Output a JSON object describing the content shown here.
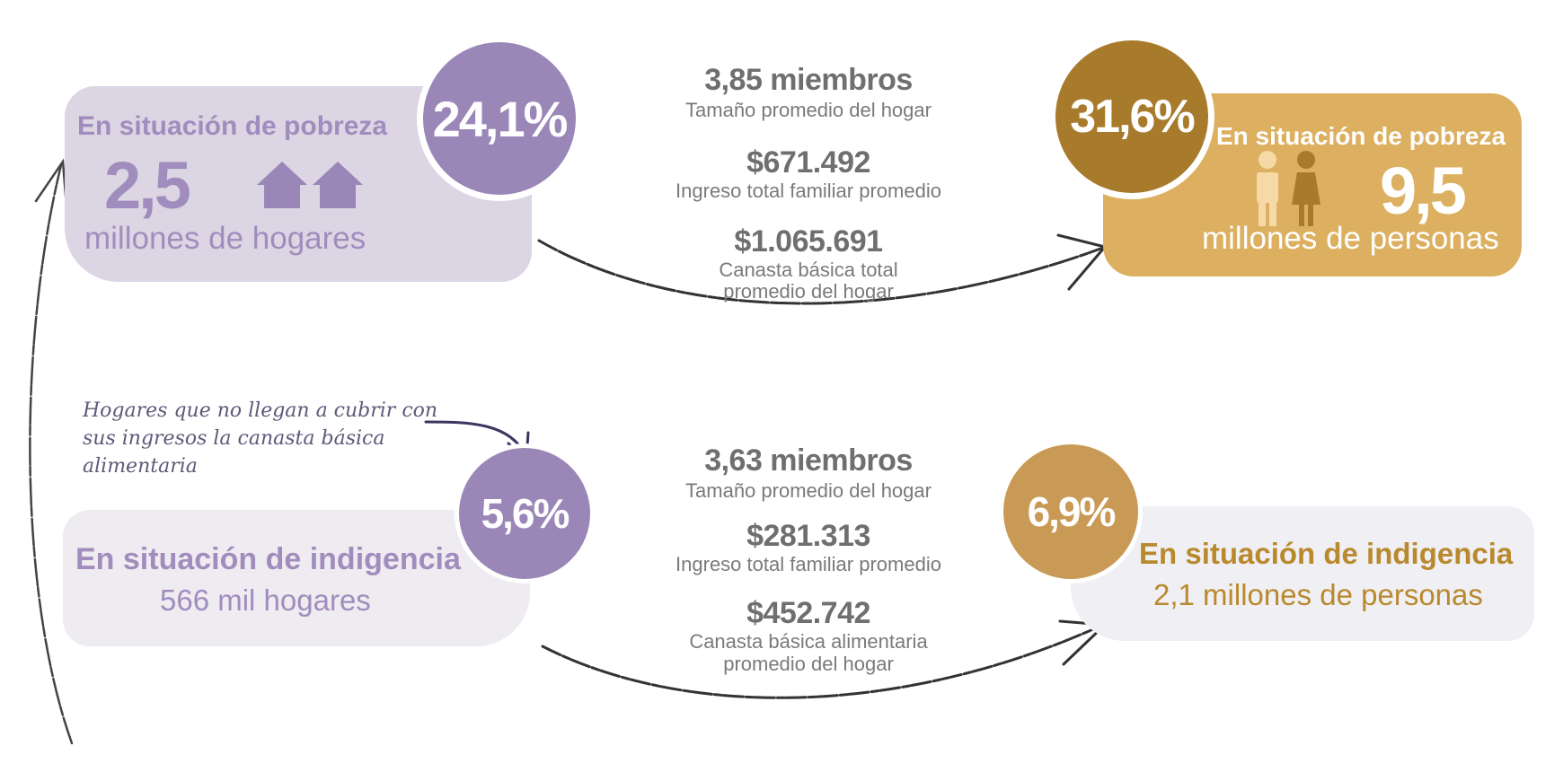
{
  "colors": {
    "purple": "#9a87b8",
    "purple_text": "#a08dbd",
    "lavender_card": "#dcd5e3",
    "light_card": "#eeebf1",
    "gold_dark": "#a87a2c",
    "gold_card": "#dcb060",
    "gold_circle": "#c99a55",
    "gold_text": "#b9892e",
    "light_gold_card": "#f0eff3",
    "gray_text": "#707070"
  },
  "icons": {
    "houses": "house-icon",
    "people": "person-icon"
  },
  "pobreza_hogares": {
    "percent": "24,1%",
    "heading": "En situación de pobreza",
    "value": "2,5",
    "unit": "millones de hogares"
  },
  "pobreza_personas": {
    "percent": "31,6%",
    "heading": "En situación de pobreza",
    "value": "9,5",
    "unit": "millones de personas"
  },
  "pobreza_stats": [
    {
      "value": "3,85 miembros",
      "label": "Tamaño promedio del hogar"
    },
    {
      "value": "$671.492",
      "label": "Ingreso total familiar promedio"
    },
    {
      "value": "$1.065.691",
      "label_line1": "Canasta básica total",
      "label_line2": "promedio del hogar"
    }
  ],
  "note": {
    "line1": "Hogares que no llegan a cubrir con",
    "line2": "sus ingresos la canasta básica",
    "line3": "alimentaria"
  },
  "indigencia_hogares": {
    "percent": "5,6%",
    "heading": "En situación de indigencia",
    "unit": "566 mil hogares"
  },
  "indigencia_personas": {
    "percent": "6,9%",
    "heading": "En situación de indigencia",
    "unit": "2,1 millones de personas"
  },
  "indigencia_stats": [
    {
      "value": "3,63 miembros",
      "label": "Tamaño promedio del hogar"
    },
    {
      "value": "$281.313",
      "label": "Ingreso total familiar promedio"
    },
    {
      "value": "$452.742",
      "label_line1": "Canasta básica alimentaria",
      "label_line2": "promedio del hogar"
    }
  ]
}
